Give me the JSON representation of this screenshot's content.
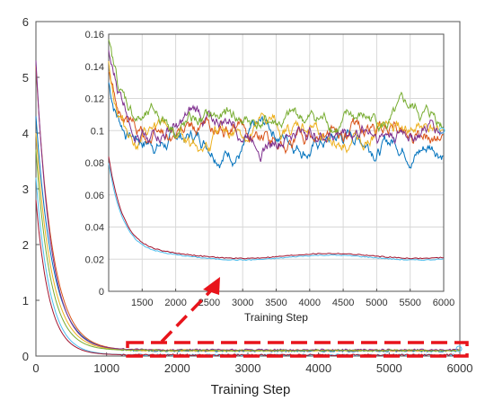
{
  "chart_data": [
    {
      "id": "main",
      "type": "line",
      "title": "",
      "xlabel": "Training Step",
      "ylabel": "",
      "xlim": [
        0,
        6000
      ],
      "ylim": [
        0,
        6
      ],
      "xticks": [
        0,
        1000,
        2000,
        3000,
        4000,
        5000,
        6000
      ],
      "yticks": [
        0,
        1,
        2,
        3,
        4,
        5,
        6
      ],
      "grid": false,
      "series": [
        {
          "color": "#0072BD",
          "start": 4.3,
          "tail": 0.09
        },
        {
          "color": "#D95319",
          "start": 5.2,
          "tail": 0.1
        },
        {
          "color": "#EDB120",
          "start": 4.0,
          "tail": 0.1
        },
        {
          "color": "#7E2F8E",
          "start": 5.3,
          "tail": 0.11
        },
        {
          "color": "#77AC30",
          "start": 3.7,
          "tail": 0.1
        },
        {
          "color": "#4DBEEE",
          "start": 3.2,
          "tail": 0.02
        },
        {
          "color": "#A2142F",
          "start": 2.8,
          "tail": 0.02
        }
      ]
    },
    {
      "id": "inset",
      "type": "line",
      "title": "",
      "xlabel": "Training Step",
      "ylabel": "",
      "xlim": [
        1000,
        6000
      ],
      "ylim": [
        0,
        0.16
      ],
      "xticks": [
        1500,
        2000,
        2500,
        3000,
        3500,
        4000,
        4500,
        5000,
        5500,
        6000
      ],
      "yticks": [
        0,
        0.02,
        0.04,
        0.06,
        0.08,
        0.1,
        0.12,
        0.14,
        0.16
      ],
      "grid": true,
      "series": [
        {
          "color": "#0072BD",
          "level": 0.096
        },
        {
          "color": "#D95319",
          "level": 0.097
        },
        {
          "color": "#EDB120",
          "level": 0.095
        },
        {
          "color": "#7E2F8E",
          "level": 0.103
        },
        {
          "color": "#77AC30",
          "level": 0.104
        },
        {
          "color": "#4DBEEE",
          "level": 0.021
        },
        {
          "color": "#A2142F",
          "level": 0.022
        }
      ]
    }
  ],
  "annotation": {
    "color": "#E8141B",
    "style": "dashed box with arrow"
  }
}
